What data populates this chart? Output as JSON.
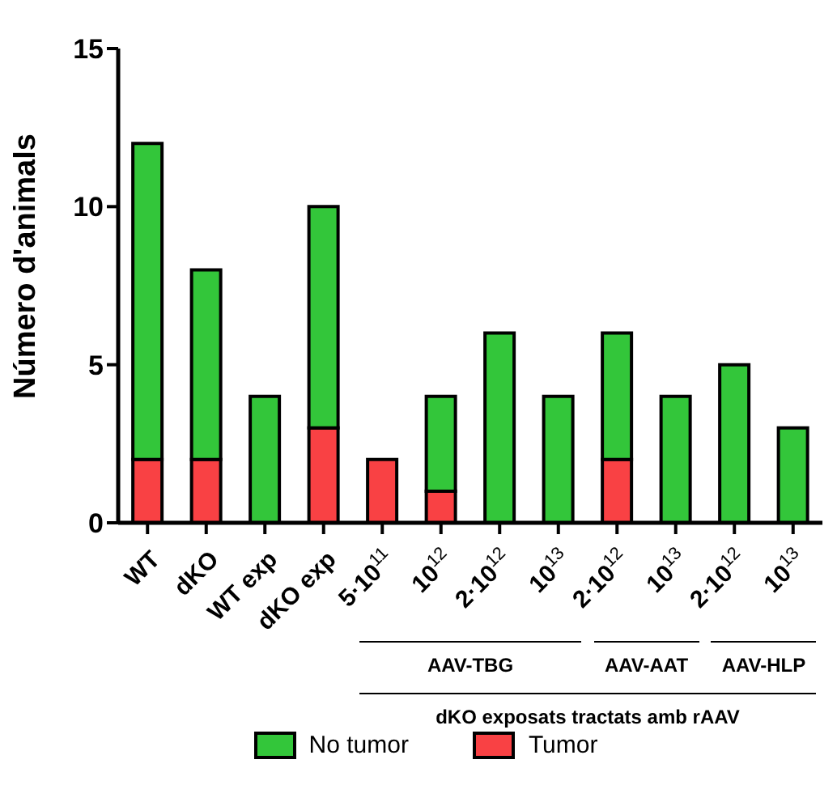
{
  "chart_data": {
    "type": "bar",
    "stacked": true,
    "ylabel": "Número d'animals",
    "categories": [
      "WT",
      "dKO",
      "WT exp",
      "dKO exp",
      "5·10$^{11}$",
      "10$^{12}$",
      "2·10$^{12}$",
      "10$^{13}$",
      "2·10$^{12}$",
      "10$^{13}$",
      "2·10$^{12}$",
      "10$^{13}$"
    ],
    "series": [
      {
        "name": "Tumor",
        "color": "#f94144",
        "values": [
          2,
          2,
          0,
          3,
          2,
          1,
          0,
          0,
          2,
          0,
          0,
          0
        ]
      },
      {
        "name": "No tumor",
        "color": "#33c63a",
        "values": [
          10,
          6,
          4,
          7,
          0,
          3,
          6,
          4,
          4,
          4,
          5,
          3
        ]
      }
    ],
    "ylim": [
      0,
      15
    ],
    "yticks": [
      0,
      5,
      10,
      15
    ],
    "grid": false,
    "legend": "bottom",
    "annotations": [
      "AAV-TBG",
      "AAV-AAT",
      "AAV-HLP",
      "dKO exposats tractats amb rAAV"
    ]
  }
}
